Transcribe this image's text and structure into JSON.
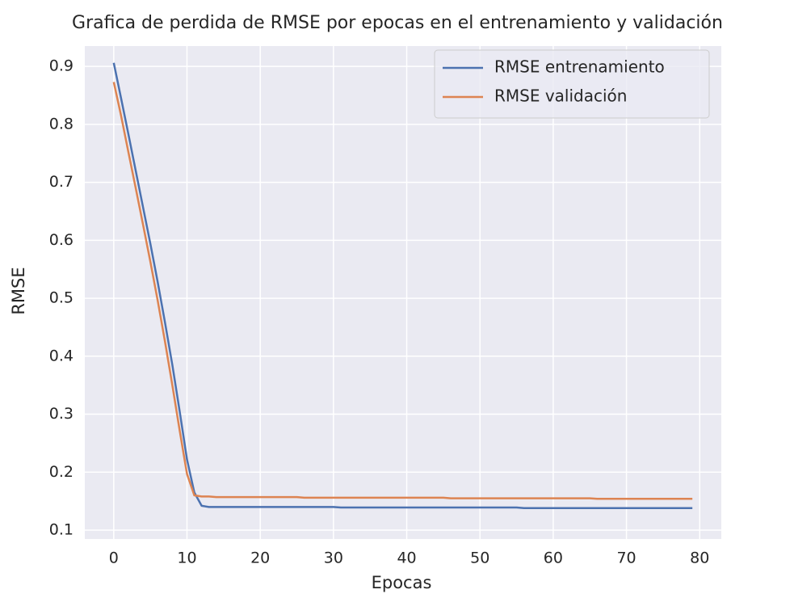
{
  "chart_data": {
    "type": "line",
    "title": "Grafica de perdida de RMSE por epocas en el entrenamiento y validación",
    "x_label": "Epocas",
    "y_label": "RMSE",
    "x": [
      0,
      1,
      2,
      3,
      4,
      5,
      6,
      7,
      8,
      9,
      10,
      11,
      12,
      13,
      14,
      15,
      16,
      17,
      18,
      19,
      20,
      21,
      22,
      23,
      24,
      25,
      26,
      27,
      28,
      29,
      30,
      31,
      32,
      33,
      34,
      35,
      36,
      37,
      38,
      39,
      40,
      41,
      42,
      43,
      44,
      45,
      46,
      47,
      48,
      49,
      50,
      51,
      52,
      53,
      54,
      55,
      56,
      57,
      58,
      59,
      60,
      61,
      62,
      63,
      64,
      65,
      66,
      67,
      68,
      69,
      70,
      71,
      72,
      73,
      74,
      75,
      76,
      77,
      78,
      79
    ],
    "series": [
      {
        "name": "RMSE entrenamiento",
        "color": "#4c72b0",
        "values": [
          0.906,
          0.845,
          0.783,
          0.72,
          0.657,
          0.594,
          0.528,
          0.458,
          0.385,
          0.305,
          0.222,
          0.165,
          0.142,
          0.14,
          0.14,
          0.14,
          0.14,
          0.14,
          0.14,
          0.14,
          0.14,
          0.14,
          0.14,
          0.14,
          0.14,
          0.14,
          0.14,
          0.14,
          0.14,
          0.14,
          0.14,
          0.139,
          0.139,
          0.139,
          0.139,
          0.139,
          0.139,
          0.139,
          0.139,
          0.139,
          0.139,
          0.139,
          0.139,
          0.139,
          0.139,
          0.139,
          0.139,
          0.139,
          0.139,
          0.139,
          0.139,
          0.139,
          0.139,
          0.139,
          0.139,
          0.139,
          0.138,
          0.138,
          0.138,
          0.138,
          0.138,
          0.138,
          0.138,
          0.138,
          0.138,
          0.138,
          0.138,
          0.138,
          0.138,
          0.138,
          0.138,
          0.138,
          0.138,
          0.138,
          0.138,
          0.138,
          0.138,
          0.138,
          0.138,
          0.138
        ]
      },
      {
        "name": "RMSE validación",
        "color": "#dd8452",
        "values": [
          0.873,
          0.815,
          0.752,
          0.69,
          0.627,
          0.563,
          0.496,
          0.425,
          0.35,
          0.272,
          0.197,
          0.16,
          0.158,
          0.158,
          0.157,
          0.157,
          0.157,
          0.157,
          0.157,
          0.157,
          0.157,
          0.157,
          0.157,
          0.157,
          0.157,
          0.157,
          0.156,
          0.156,
          0.156,
          0.156,
          0.156,
          0.156,
          0.156,
          0.156,
          0.156,
          0.156,
          0.156,
          0.156,
          0.156,
          0.156,
          0.156,
          0.156,
          0.156,
          0.156,
          0.156,
          0.156,
          0.155,
          0.155,
          0.155,
          0.155,
          0.155,
          0.155,
          0.155,
          0.155,
          0.155,
          0.155,
          0.155,
          0.155,
          0.155,
          0.155,
          0.155,
          0.155,
          0.155,
          0.155,
          0.155,
          0.155,
          0.154,
          0.154,
          0.154,
          0.154,
          0.154,
          0.154,
          0.154,
          0.154,
          0.154,
          0.154,
          0.154,
          0.154,
          0.154,
          0.154
        ]
      }
    ],
    "xlim": [
      -3.95,
      82.95
    ],
    "ylim": [
      0.0847,
      0.935
    ],
    "xticks": [
      0,
      10,
      20,
      30,
      40,
      50,
      60,
      70,
      80
    ],
    "yticks": [
      0.1,
      0.2,
      0.3,
      0.4,
      0.5,
      0.6,
      0.7,
      0.8,
      0.9
    ],
    "grid": true,
    "legend": "upper right"
  }
}
